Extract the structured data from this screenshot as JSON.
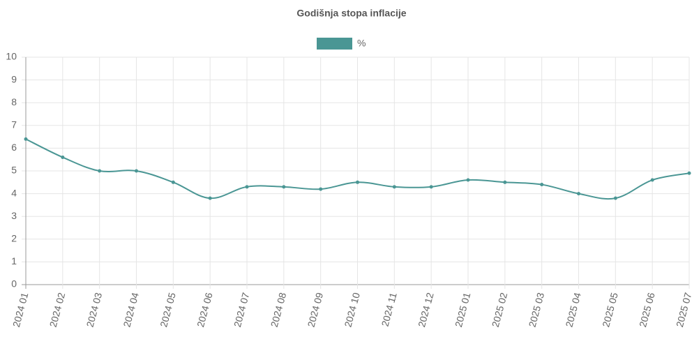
{
  "chart_data": {
    "type": "line",
    "title": "Godišnja stopa inflacije",
    "categories": [
      "2024 01",
      "2024 02",
      "2024 03",
      "2024 04",
      "2024 05",
      "2024 06",
      "2024 07",
      "2024 08",
      "2024 09",
      "2024 10",
      "2024 11",
      "2024 12",
      "2025 01",
      "2025 02",
      "2025 03",
      "2025 04",
      "2025 05",
      "2025 06",
      "2025 07"
    ],
    "series": [
      {
        "name": "%",
        "color": "#4a9694",
        "values": [
          6.4,
          5.6,
          5.0,
          5.0,
          4.5,
          3.8,
          4.3,
          4.3,
          4.2,
          4.5,
          4.3,
          4.3,
          4.6,
          4.5,
          4.4,
          4.0,
          3.8,
          4.6,
          4.9
        ]
      }
    ],
    "ylim": [
      0,
      10
    ],
    "yticks": [
      0,
      1,
      2,
      3,
      4,
      5,
      6,
      7,
      8,
      9,
      10
    ],
    "grid": true,
    "legend": "top"
  }
}
